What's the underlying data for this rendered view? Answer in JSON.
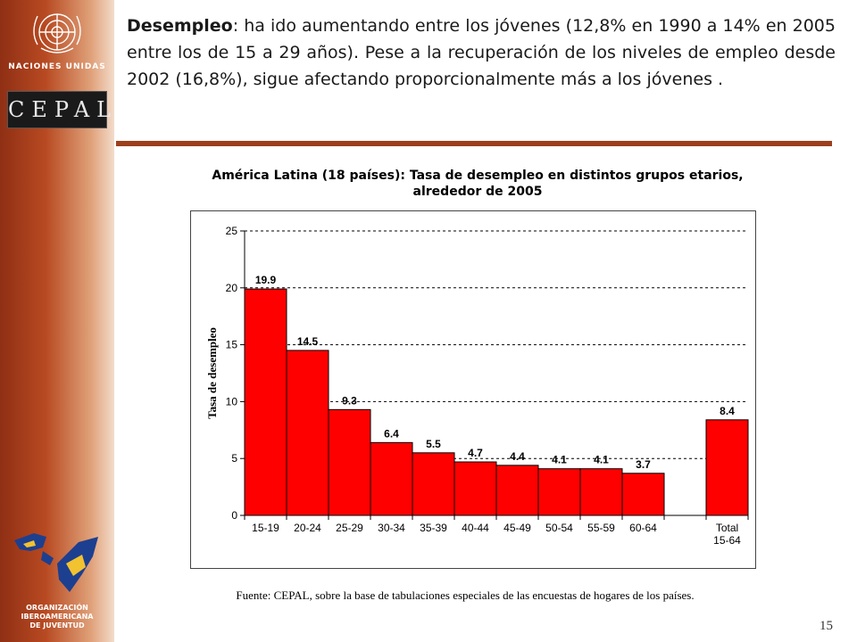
{
  "sidebar": {
    "un_label": "NACIONES UNIDAS",
    "cepal_label": "CEPAL",
    "oij_line1": "ORGANIZACIÓN",
    "oij_line2": "IBEROAMERICANA",
    "oij_line3": "DE JUVENTUD"
  },
  "intro": {
    "lead": "Desempleo",
    "text": ": ha ido aumentando entre los jóvenes (12,8% en 1990 a 14% en 2005 entre los de 15 a 29 años). Pese a la recuperación de los niveles de empleo desde  2002 (16,8%), sigue afectando proporcionalmente más a los jóvenes ."
  },
  "colors": {
    "accent": "#9c3f1c",
    "bar": "#ff0000"
  },
  "chart_data": {
    "type": "bar",
    "title_line1": "América Latina (18 países): Tasa de desempleo en distintos grupos etarios,",
    "title_line2": "alrededor de 2005",
    "ylabel": "Tasa de desempleo",
    "xlabel": "",
    "ylim": [
      0,
      25
    ],
    "yticks": [
      0,
      5,
      10,
      15,
      20,
      25
    ],
    "grid": true,
    "categories": [
      "15-19",
      "20-24",
      "25-29",
      "30-34",
      "35-39",
      "40-44",
      "45-49",
      "50-54",
      "55-59",
      "60-64",
      "",
      "Total 15-64"
    ],
    "values": [
      19.9,
      14.5,
      9.3,
      6.4,
      5.5,
      4.7,
      4.4,
      4.1,
      4.1,
      3.7,
      null,
      8.4
    ],
    "labels": [
      "19.9",
      "14.5",
      "9.3",
      "6.4",
      "5.5",
      "4.7",
      "4.4",
      "4.1",
      "4.1",
      "3.7",
      "",
      "8.4"
    ]
  },
  "source": "Fuente: CEPAL, sobre la base de tabulaciones especiales de las encuestas de hogares de los países.",
  "page_number": "15"
}
